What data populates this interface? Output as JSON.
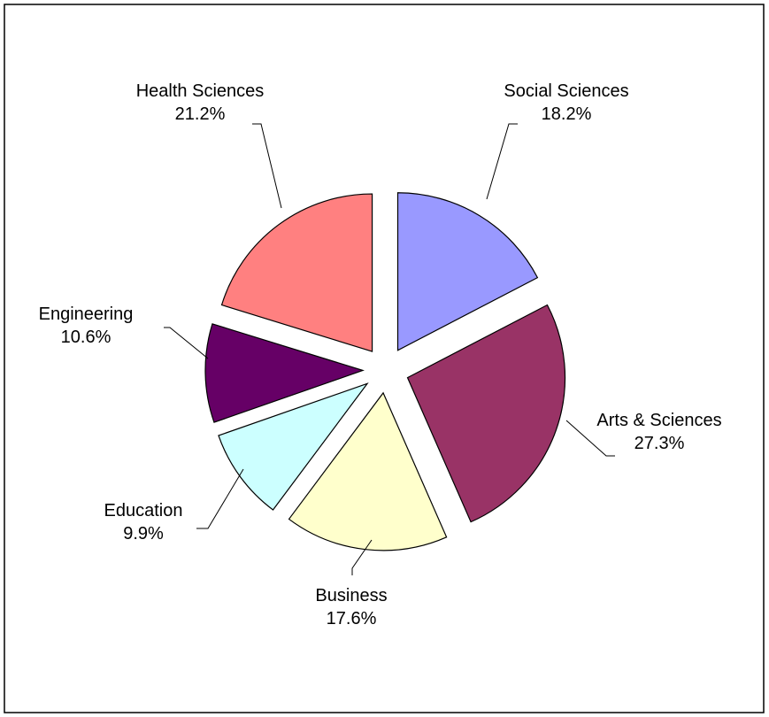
{
  "chart_data": {
    "type": "pie",
    "categories": [
      "Social Sciences",
      "Arts & Sciences",
      "Business",
      "Education",
      "Engineering",
      "Health Sciences"
    ],
    "values": [
      18.2,
      27.3,
      17.6,
      9.9,
      10.6,
      21.2
    ],
    "value_labels": [
      "18.2%",
      "27.3%",
      "17.6%",
      "9.9%",
      "10.6%",
      "21.2%"
    ],
    "colors": [
      "#9999ff",
      "#993366",
      "#ffffcc",
      "#ccffff",
      "#660066",
      "#ff8080"
    ],
    "exploded": true
  }
}
